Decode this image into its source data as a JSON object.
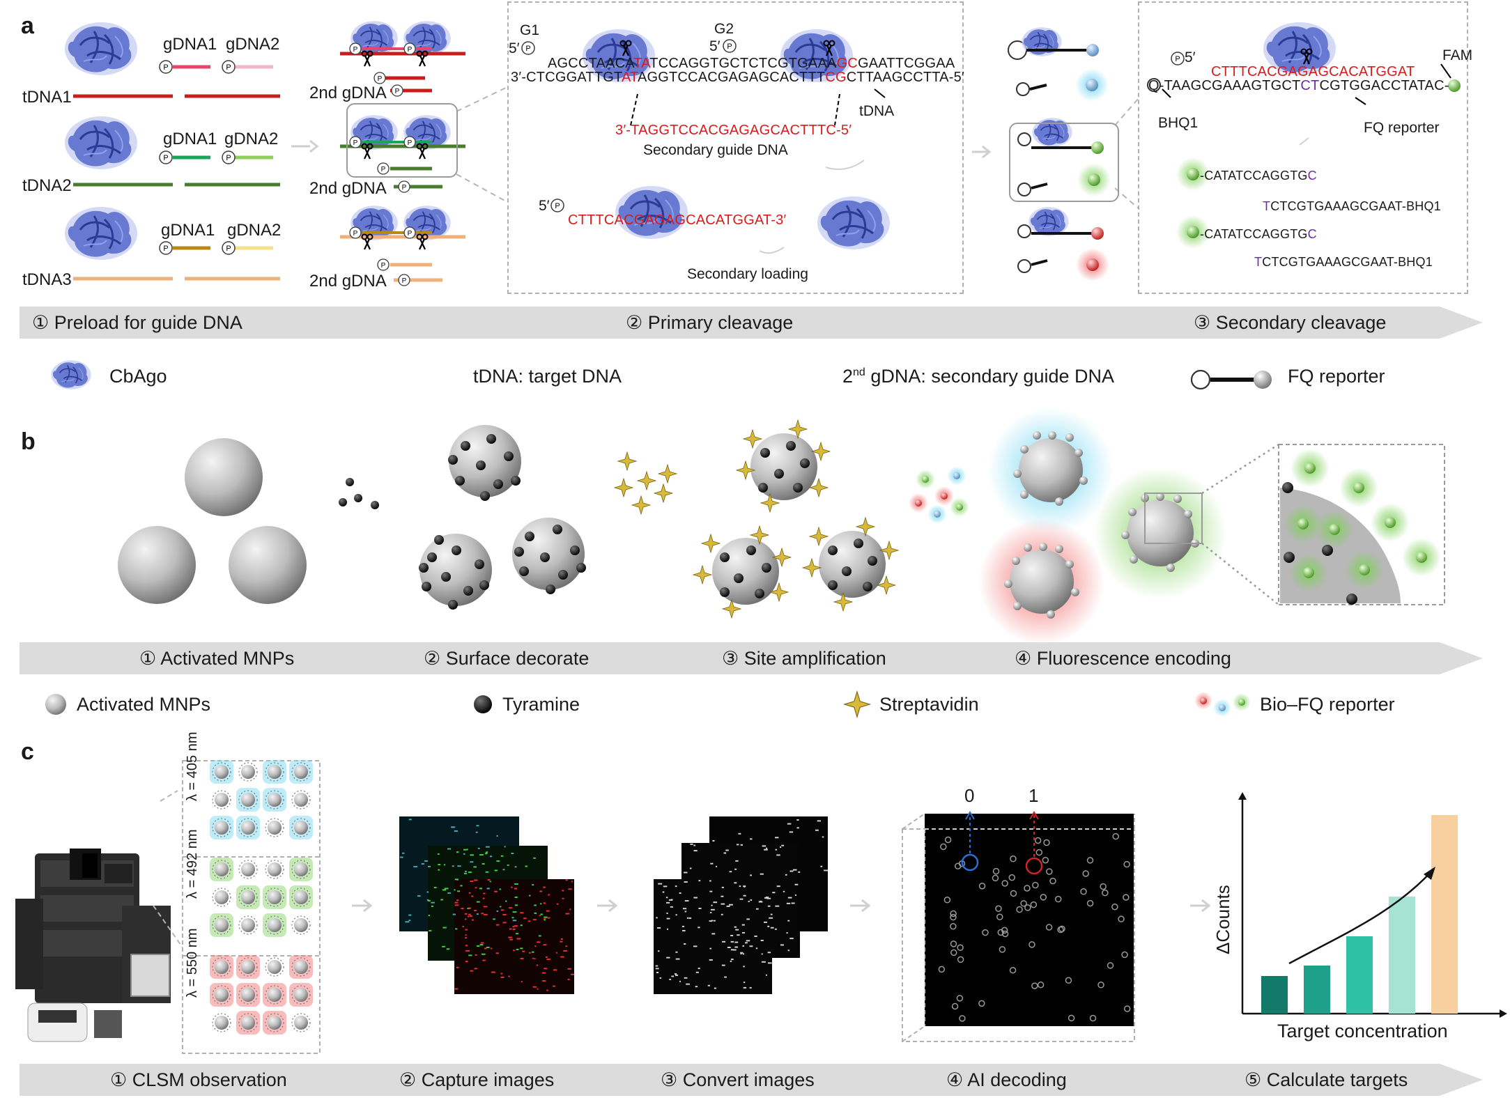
{
  "panel_a": {
    "letter": "a",
    "proteins_label_gdna1": "gDNA1",
    "proteins_label_gdna2": "gDNA2",
    "tdna_labels": [
      "tDNA1",
      "tDNA2",
      "tDNA3"
    ],
    "second_gdna": "2nd gDNA",
    "p_symbol": "P",
    "g1": "G1",
    "g2": "G2",
    "five_prime": "5′",
    "top_strand": "AGCCTAACA",
    "top_strand_red1": "TA",
    "top_strand_mid": "TCCAGGTGCTCTCGTGAAA",
    "top_strand_red2": "GC",
    "top_strand_end": "GAATTCGGAA",
    "bottom_strand_start": "3′-CTCGGATTGT",
    "bottom_strand_red1": "AT",
    "bottom_strand_mid": "AGGTCCACGAGAGCACTTT",
    "bottom_strand_red2": "CG",
    "bottom_strand_end": "CTTAAGCCTTA-5′",
    "tdna_text": "tDNA",
    "secondary_seq": "3′-TAGGTCCACGAGAGCACTTTC-5′",
    "secondary_guide_label": "Secondary guide DNA",
    "loaded_seq": "CTTTCACGAGAGCACATGGAT-3′",
    "secondary_loading": "Secondary loading",
    "fq_top": "CTTTCACGA",
    "fq_top_red": "GAGCACATGGAT",
    "fq_bottom_start": "Q-TAAGCGAAAGTGCT",
    "fq_bottom_purple": "CT",
    "fq_bottom_end": "CGTGGACCTATAC-",
    "fam": "FAM",
    "bhq1": "BHQ1",
    "fq_reporter": "FQ reporter",
    "product1": "-CATATCCAGGTG",
    "product1_purple": "C",
    "product2_purple": "T",
    "product2": "CTCGTGAAAGCGAAT-BHQ1",
    "product3": "-CATATCCAGGTG",
    "product3_purple": "C",
    "product4_purple": "T",
    "product4": "CTCGTGAAAGCGAAT-BHQ1",
    "steps": [
      "① Preload for guide DNA",
      "② Primary cleavage",
      "③ Secondary cleavage"
    ],
    "legend": {
      "cbago": "CbAgo",
      "tdna": "tDNA: target DNA",
      "gdna_sup": "nd",
      "gdna_pre": "2",
      "gdna_post": " gDNA: secondary guide DNA",
      "fq": "FQ reporter"
    }
  },
  "panel_b": {
    "letter": "b",
    "steps": [
      "① Activated MNPs",
      "② Surface decorate",
      "③ Site amplification",
      "④ Fluorescence encoding"
    ],
    "legend": {
      "mnps": "Activated MNPs",
      "tyramine": "Tyramine",
      "streptavidin": "Streptavidin",
      "bio_fq": "Bio–FQ reporter"
    }
  },
  "panel_c": {
    "letter": "c",
    "wavelengths": [
      "λ = 405 nm",
      "λ = 492 nm",
      "λ = 550 nm"
    ],
    "decode_labels": [
      "0",
      "1"
    ],
    "chart_ylabel": "ΔCounts",
    "chart_xlabel": "Target concentration",
    "steps": [
      "① CLSM observation",
      "② Capture images",
      "③ Convert images",
      "④ AI decoding",
      "⑤ Calculate targets"
    ]
  },
  "chart_data": {
    "type": "bar",
    "ylabel": "ΔCounts",
    "xlabel": "Target concentration",
    "values": [
      0.18,
      0.23,
      0.37,
      0.56,
      0.95
    ],
    "colors": [
      "#137a6a",
      "#1ea08a",
      "#2dc1a7",
      "#a6e3d2",
      "#f8cf9e"
    ]
  },
  "colors": {
    "band": "#dcdcdc",
    "protein": "#4a5cc0",
    "tdna1": "#c81d1d",
    "tdna2": "#4a7c2e",
    "tdna3": "#f0b07a",
    "gdna1_1": "#e8456a",
    "gdna2_1": "#f2b7c8",
    "gdna1_2": "#19a55a",
    "gdna2_2": "#8fd05c",
    "gdna1_3": "#b88a14",
    "gdna2_3": "#f5e08a"
  }
}
